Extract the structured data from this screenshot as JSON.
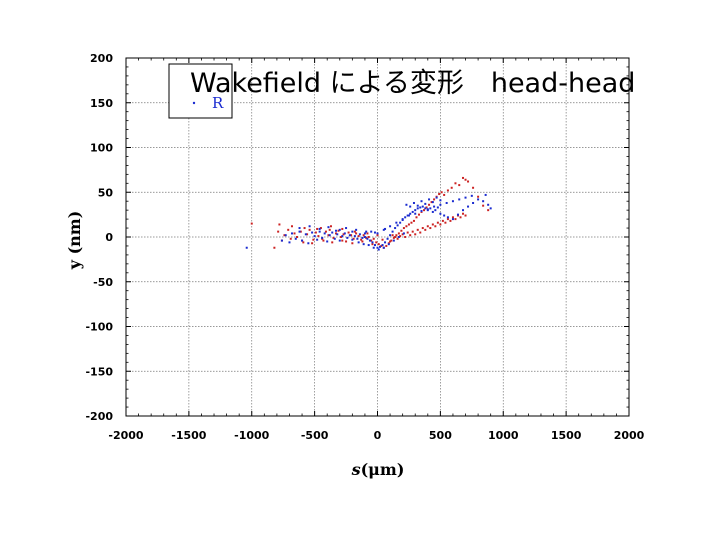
{
  "slide_title": "Wakefield による変形　head-head",
  "chart_data": {
    "type": "scatter",
    "title": "",
    "xlabel_italic": "s",
    "xlabel_rest": "(μm)",
    "ylabel": "y (nm)",
    "xlim": [
      -2000,
      2000
    ],
    "ylim": [
      -200,
      200
    ],
    "x_ticks": [
      -2000,
      -1500,
      -1000,
      -500,
      0,
      500,
      1000,
      1500,
      2000
    ],
    "y_ticks": [
      200,
      150,
      100,
      50,
      0,
      -50,
      -100,
      -150,
      -200
    ],
    "x_tick_labels": [
      "-2000",
      "-1500",
      "-1000",
      "-500",
      "0",
      "500",
      "1000",
      "1500",
      "2000"
    ],
    "y_tick_labels": [
      "200",
      "150",
      "100",
      "50",
      "0",
      "-50",
      "-100",
      "-150",
      "-200"
    ],
    "grid": true,
    "legend_position": "top-left",
    "series": [
      {
        "name": "",
        "color": "#cc2222",
        "points": [
          [
            -820,
            -12
          ],
          [
            -790,
            6
          ],
          [
            -760,
            -4
          ],
          [
            -740,
            2
          ],
          [
            -710,
            8
          ],
          [
            -690,
            -2
          ],
          [
            -660,
            4
          ],
          [
            -640,
            0
          ],
          [
            -610,
            6
          ],
          [
            -590,
            -6
          ],
          [
            -560,
            3
          ],
          [
            -540,
            8
          ],
          [
            -510,
            -3
          ],
          [
            -490,
            5
          ],
          [
            -470,
            1
          ],
          [
            -450,
            10
          ],
          [
            -430,
            -4
          ],
          [
            -410,
            6
          ],
          [
            -390,
            2
          ],
          [
            -370,
            12
          ],
          [
            -350,
            -1
          ],
          [
            -330,
            4
          ],
          [
            -310,
            7
          ],
          [
            -290,
            0
          ],
          [
            -270,
            3
          ],
          [
            -250,
            -5
          ],
          [
            -230,
            5
          ],
          [
            -210,
            2
          ],
          [
            -190,
            -2
          ],
          [
            -170,
            4
          ],
          [
            -150,
            1
          ],
          [
            -130,
            -3
          ],
          [
            -110,
            2
          ],
          [
            -90,
            -1
          ],
          [
            -70,
            0
          ],
          [
            -50,
            -4
          ],
          [
            -30,
            -2
          ],
          [
            -10,
            -6
          ],
          [
            10,
            -8
          ],
          [
            30,
            -10
          ],
          [
            50,
            -12
          ],
          [
            70,
            -10
          ],
          [
            90,
            -7
          ],
          [
            110,
            -4
          ],
          [
            130,
            -1
          ],
          [
            150,
            2
          ],
          [
            170,
            4
          ],
          [
            190,
            7
          ],
          [
            210,
            10
          ],
          [
            230,
            12
          ],
          [
            250,
            14
          ],
          [
            270,
            16
          ],
          [
            290,
            18
          ],
          [
            310,
            22
          ],
          [
            330,
            25
          ],
          [
            350,
            28
          ],
          [
            370,
            30
          ],
          [
            390,
            33
          ],
          [
            410,
            36
          ],
          [
            430,
            39
          ],
          [
            450,
            42
          ],
          [
            470,
            45
          ],
          [
            490,
            48
          ],
          [
            510,
            50
          ],
          [
            530,
            47
          ],
          [
            560,
            52
          ],
          [
            590,
            55
          ],
          [
            620,
            60
          ],
          [
            650,
            58
          ],
          [
            680,
            66
          ],
          [
            700,
            64
          ],
          [
            720,
            62
          ],
          [
            760,
            55
          ],
          [
            800,
            45
          ],
          [
            840,
            35
          ],
          [
            880,
            30
          ],
          [
            120,
            2
          ],
          [
            140,
            0
          ],
          [
            160,
            -2
          ],
          [
            180,
            1
          ],
          [
            200,
            3
          ],
          [
            220,
            0
          ],
          [
            240,
            5
          ],
          [
            260,
            2
          ],
          [
            280,
            6
          ],
          [
            300,
            3
          ],
          [
            320,
            8
          ],
          [
            340,
            5
          ],
          [
            360,
            10
          ],
          [
            380,
            8
          ],
          [
            400,
            12
          ],
          [
            420,
            10
          ],
          [
            440,
            14
          ],
          [
            460,
            12
          ],
          [
            480,
            16
          ],
          [
            500,
            14
          ],
          [
            520,
            18
          ],
          [
            540,
            16
          ],
          [
            560,
            20
          ],
          [
            580,
            18
          ],
          [
            600,
            22
          ],
          [
            620,
            20
          ],
          [
            640,
            24
          ],
          [
            660,
            22
          ],
          [
            680,
            26
          ],
          [
            700,
            24
          ],
          [
            -600,
            -4
          ],
          [
            -520,
            -7
          ],
          [
            -440,
            -2
          ],
          [
            -360,
            -6
          ],
          [
            -280,
            -4
          ],
          [
            -200,
            -7
          ],
          [
            -120,
            -5
          ],
          [
            -40,
            -8
          ],
          [
            40,
            -3
          ],
          [
            100,
            -5
          ],
          [
            -1000,
            15
          ],
          [
            -780,
            14
          ],
          [
            -680,
            12
          ],
          [
            -580,
            10
          ],
          [
            -480,
            9
          ],
          [
            -380,
            8
          ],
          [
            -280,
            9
          ],
          [
            -180,
            6
          ],
          [
            -80,
            4
          ],
          [
            0,
            2
          ]
        ]
      },
      {
        "name": "R",
        "color": "#1a2bd0",
        "points": [
          [
            -1040,
            -12
          ],
          [
            -760,
            -4
          ],
          [
            -730,
            2
          ],
          [
            -700,
            -6
          ],
          [
            -680,
            4
          ],
          [
            -650,
            -2
          ],
          [
            -620,
            6
          ],
          [
            -600,
            -4
          ],
          [
            -570,
            3
          ],
          [
            -550,
            -7
          ],
          [
            -520,
            5
          ],
          [
            -500,
            1
          ],
          [
            -480,
            -3
          ],
          [
            -460,
            6
          ],
          [
            -440,
            -1
          ],
          [
            -420,
            4
          ],
          [
            -400,
            -5
          ],
          [
            -380,
            2
          ],
          [
            -360,
            5
          ],
          [
            -340,
            -2
          ],
          [
            -320,
            3
          ],
          [
            -300,
            -4
          ],
          [
            -280,
            1
          ],
          [
            -260,
            4
          ],
          [
            -240,
            -1
          ],
          [
            -220,
            2
          ],
          [
            -200,
            -3
          ],
          [
            -180,
            1
          ],
          [
            -160,
            -2
          ],
          [
            -140,
            3
          ],
          [
            -120,
            -1
          ],
          [
            -100,
            0
          ],
          [
            -80,
            -2
          ],
          [
            -60,
            -4
          ],
          [
            -40,
            -6
          ],
          [
            -20,
            -9
          ],
          [
            0,
            -12
          ],
          [
            20,
            -11
          ],
          [
            40,
            -9
          ],
          [
            60,
            -6
          ],
          [
            80,
            -2
          ],
          [
            100,
            2
          ],
          [
            120,
            6
          ],
          [
            140,
            10
          ],
          [
            160,
            13
          ],
          [
            180,
            16
          ],
          [
            200,
            19
          ],
          [
            220,
            22
          ],
          [
            240,
            24
          ],
          [
            260,
            26
          ],
          [
            280,
            28
          ],
          [
            300,
            30
          ],
          [
            320,
            32
          ],
          [
            340,
            33
          ],
          [
            360,
            34
          ],
          [
            380,
            32
          ],
          [
            400,
            30
          ],
          [
            420,
            32
          ],
          [
            440,
            28
          ],
          [
            460,
            30
          ],
          [
            480,
            33
          ],
          [
            500,
            26
          ],
          [
            530,
            24
          ],
          [
            560,
            22
          ],
          [
            600,
            20
          ],
          [
            640,
            25
          ],
          [
            680,
            30
          ],
          [
            720,
            34
          ],
          [
            760,
            38
          ],
          [
            800,
            42
          ],
          [
            840,
            40
          ],
          [
            880,
            36
          ],
          [
            860,
            47
          ],
          [
            900,
            32
          ],
          [
            -300,
            8
          ],
          [
            -200,
            6
          ],
          [
            -100,
            4
          ],
          [
            -50,
            6
          ],
          [
            0,
            4
          ],
          [
            50,
            8
          ],
          [
            100,
            12
          ],
          [
            150,
            16
          ],
          [
            200,
            20
          ],
          [
            250,
            24
          ],
          [
            300,
            26
          ],
          [
            350,
            29
          ],
          [
            400,
            31
          ],
          [
            450,
            34
          ],
          [
            500,
            36
          ],
          [
            550,
            38
          ],
          [
            600,
            40
          ],
          [
            650,
            42
          ],
          [
            700,
            44
          ],
          [
            750,
            46
          ],
          [
            -150,
            -6
          ],
          [
            -110,
            -8
          ],
          [
            -70,
            -9
          ],
          [
            -30,
            -12
          ],
          [
            10,
            -14
          ],
          [
            50,
            -12
          ],
          [
            90,
            -8
          ],
          [
            130,
            -4
          ],
          [
            170,
            0
          ],
          [
            210,
            4
          ],
          [
            -620,
            10
          ],
          [
            -540,
            12
          ],
          [
            -460,
            9
          ],
          [
            -390,
            11
          ],
          [
            -330,
            7
          ],
          [
            -250,
            10
          ],
          [
            -170,
            8
          ],
          [
            -90,
            6
          ],
          [
            -20,
            5
          ],
          [
            60,
            9
          ],
          [
            230,
            36
          ],
          [
            260,
            34
          ],
          [
            290,
            38
          ],
          [
            320,
            35
          ],
          [
            350,
            40
          ],
          [
            380,
            37
          ],
          [
            410,
            42
          ],
          [
            440,
            39
          ],
          [
            470,
            44
          ],
          [
            500,
            41
          ]
        ]
      }
    ]
  }
}
